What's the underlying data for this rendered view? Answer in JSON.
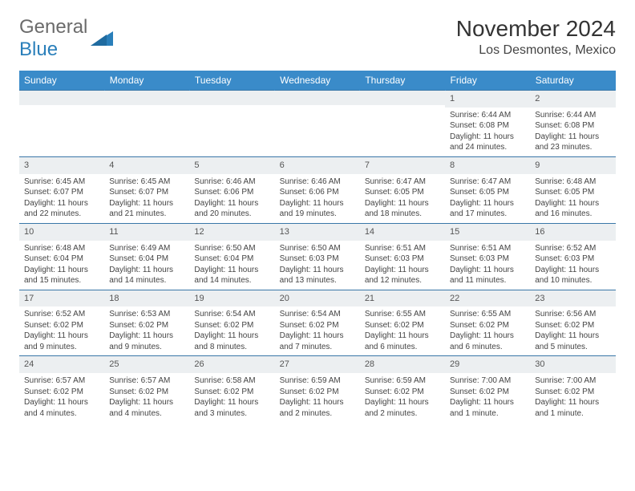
{
  "logo": {
    "text1": "General",
    "text2": "Blue"
  },
  "header": {
    "month": "November 2024",
    "location": "Los Desmontes, Mexico"
  },
  "colors": {
    "header_bg": "#3a8bc9",
    "header_text": "#ffffff",
    "daynum_bg": "#eceff1",
    "row_border": "#3a77a8",
    "logo_gen": "#6b6b6b",
    "logo_blue": "#2a7fba"
  },
  "weekdays": [
    "Sunday",
    "Monday",
    "Tuesday",
    "Wednesday",
    "Thursday",
    "Friday",
    "Saturday"
  ],
  "weeks": [
    [
      {
        "n": "",
        "sunrise": "",
        "sunset": "",
        "daylight": ""
      },
      {
        "n": "",
        "sunrise": "",
        "sunset": "",
        "daylight": ""
      },
      {
        "n": "",
        "sunrise": "",
        "sunset": "",
        "daylight": ""
      },
      {
        "n": "",
        "sunrise": "",
        "sunset": "",
        "daylight": ""
      },
      {
        "n": "",
        "sunrise": "",
        "sunset": "",
        "daylight": ""
      },
      {
        "n": "1",
        "sunrise": "Sunrise: 6:44 AM",
        "sunset": "Sunset: 6:08 PM",
        "daylight": "Daylight: 11 hours and 24 minutes."
      },
      {
        "n": "2",
        "sunrise": "Sunrise: 6:44 AM",
        "sunset": "Sunset: 6:08 PM",
        "daylight": "Daylight: 11 hours and 23 minutes."
      }
    ],
    [
      {
        "n": "3",
        "sunrise": "Sunrise: 6:45 AM",
        "sunset": "Sunset: 6:07 PM",
        "daylight": "Daylight: 11 hours and 22 minutes."
      },
      {
        "n": "4",
        "sunrise": "Sunrise: 6:45 AM",
        "sunset": "Sunset: 6:07 PM",
        "daylight": "Daylight: 11 hours and 21 minutes."
      },
      {
        "n": "5",
        "sunrise": "Sunrise: 6:46 AM",
        "sunset": "Sunset: 6:06 PM",
        "daylight": "Daylight: 11 hours and 20 minutes."
      },
      {
        "n": "6",
        "sunrise": "Sunrise: 6:46 AM",
        "sunset": "Sunset: 6:06 PM",
        "daylight": "Daylight: 11 hours and 19 minutes."
      },
      {
        "n": "7",
        "sunrise": "Sunrise: 6:47 AM",
        "sunset": "Sunset: 6:05 PM",
        "daylight": "Daylight: 11 hours and 18 minutes."
      },
      {
        "n": "8",
        "sunrise": "Sunrise: 6:47 AM",
        "sunset": "Sunset: 6:05 PM",
        "daylight": "Daylight: 11 hours and 17 minutes."
      },
      {
        "n": "9",
        "sunrise": "Sunrise: 6:48 AM",
        "sunset": "Sunset: 6:05 PM",
        "daylight": "Daylight: 11 hours and 16 minutes."
      }
    ],
    [
      {
        "n": "10",
        "sunrise": "Sunrise: 6:48 AM",
        "sunset": "Sunset: 6:04 PM",
        "daylight": "Daylight: 11 hours and 15 minutes."
      },
      {
        "n": "11",
        "sunrise": "Sunrise: 6:49 AM",
        "sunset": "Sunset: 6:04 PM",
        "daylight": "Daylight: 11 hours and 14 minutes."
      },
      {
        "n": "12",
        "sunrise": "Sunrise: 6:50 AM",
        "sunset": "Sunset: 6:04 PM",
        "daylight": "Daylight: 11 hours and 14 minutes."
      },
      {
        "n": "13",
        "sunrise": "Sunrise: 6:50 AM",
        "sunset": "Sunset: 6:03 PM",
        "daylight": "Daylight: 11 hours and 13 minutes."
      },
      {
        "n": "14",
        "sunrise": "Sunrise: 6:51 AM",
        "sunset": "Sunset: 6:03 PM",
        "daylight": "Daylight: 11 hours and 12 minutes."
      },
      {
        "n": "15",
        "sunrise": "Sunrise: 6:51 AM",
        "sunset": "Sunset: 6:03 PM",
        "daylight": "Daylight: 11 hours and 11 minutes."
      },
      {
        "n": "16",
        "sunrise": "Sunrise: 6:52 AM",
        "sunset": "Sunset: 6:03 PM",
        "daylight": "Daylight: 11 hours and 10 minutes."
      }
    ],
    [
      {
        "n": "17",
        "sunrise": "Sunrise: 6:52 AM",
        "sunset": "Sunset: 6:02 PM",
        "daylight": "Daylight: 11 hours and 9 minutes."
      },
      {
        "n": "18",
        "sunrise": "Sunrise: 6:53 AM",
        "sunset": "Sunset: 6:02 PM",
        "daylight": "Daylight: 11 hours and 9 minutes."
      },
      {
        "n": "19",
        "sunrise": "Sunrise: 6:54 AM",
        "sunset": "Sunset: 6:02 PM",
        "daylight": "Daylight: 11 hours and 8 minutes."
      },
      {
        "n": "20",
        "sunrise": "Sunrise: 6:54 AM",
        "sunset": "Sunset: 6:02 PM",
        "daylight": "Daylight: 11 hours and 7 minutes."
      },
      {
        "n": "21",
        "sunrise": "Sunrise: 6:55 AM",
        "sunset": "Sunset: 6:02 PM",
        "daylight": "Daylight: 11 hours and 6 minutes."
      },
      {
        "n": "22",
        "sunrise": "Sunrise: 6:55 AM",
        "sunset": "Sunset: 6:02 PM",
        "daylight": "Daylight: 11 hours and 6 minutes."
      },
      {
        "n": "23",
        "sunrise": "Sunrise: 6:56 AM",
        "sunset": "Sunset: 6:02 PM",
        "daylight": "Daylight: 11 hours and 5 minutes."
      }
    ],
    [
      {
        "n": "24",
        "sunrise": "Sunrise: 6:57 AM",
        "sunset": "Sunset: 6:02 PM",
        "daylight": "Daylight: 11 hours and 4 minutes."
      },
      {
        "n": "25",
        "sunrise": "Sunrise: 6:57 AM",
        "sunset": "Sunset: 6:02 PM",
        "daylight": "Daylight: 11 hours and 4 minutes."
      },
      {
        "n": "26",
        "sunrise": "Sunrise: 6:58 AM",
        "sunset": "Sunset: 6:02 PM",
        "daylight": "Daylight: 11 hours and 3 minutes."
      },
      {
        "n": "27",
        "sunrise": "Sunrise: 6:59 AM",
        "sunset": "Sunset: 6:02 PM",
        "daylight": "Daylight: 11 hours and 2 minutes."
      },
      {
        "n": "28",
        "sunrise": "Sunrise: 6:59 AM",
        "sunset": "Sunset: 6:02 PM",
        "daylight": "Daylight: 11 hours and 2 minutes."
      },
      {
        "n": "29",
        "sunrise": "Sunrise: 7:00 AM",
        "sunset": "Sunset: 6:02 PM",
        "daylight": "Daylight: 11 hours and 1 minute."
      },
      {
        "n": "30",
        "sunrise": "Sunrise: 7:00 AM",
        "sunset": "Sunset: 6:02 PM",
        "daylight": "Daylight: 11 hours and 1 minute."
      }
    ]
  ]
}
